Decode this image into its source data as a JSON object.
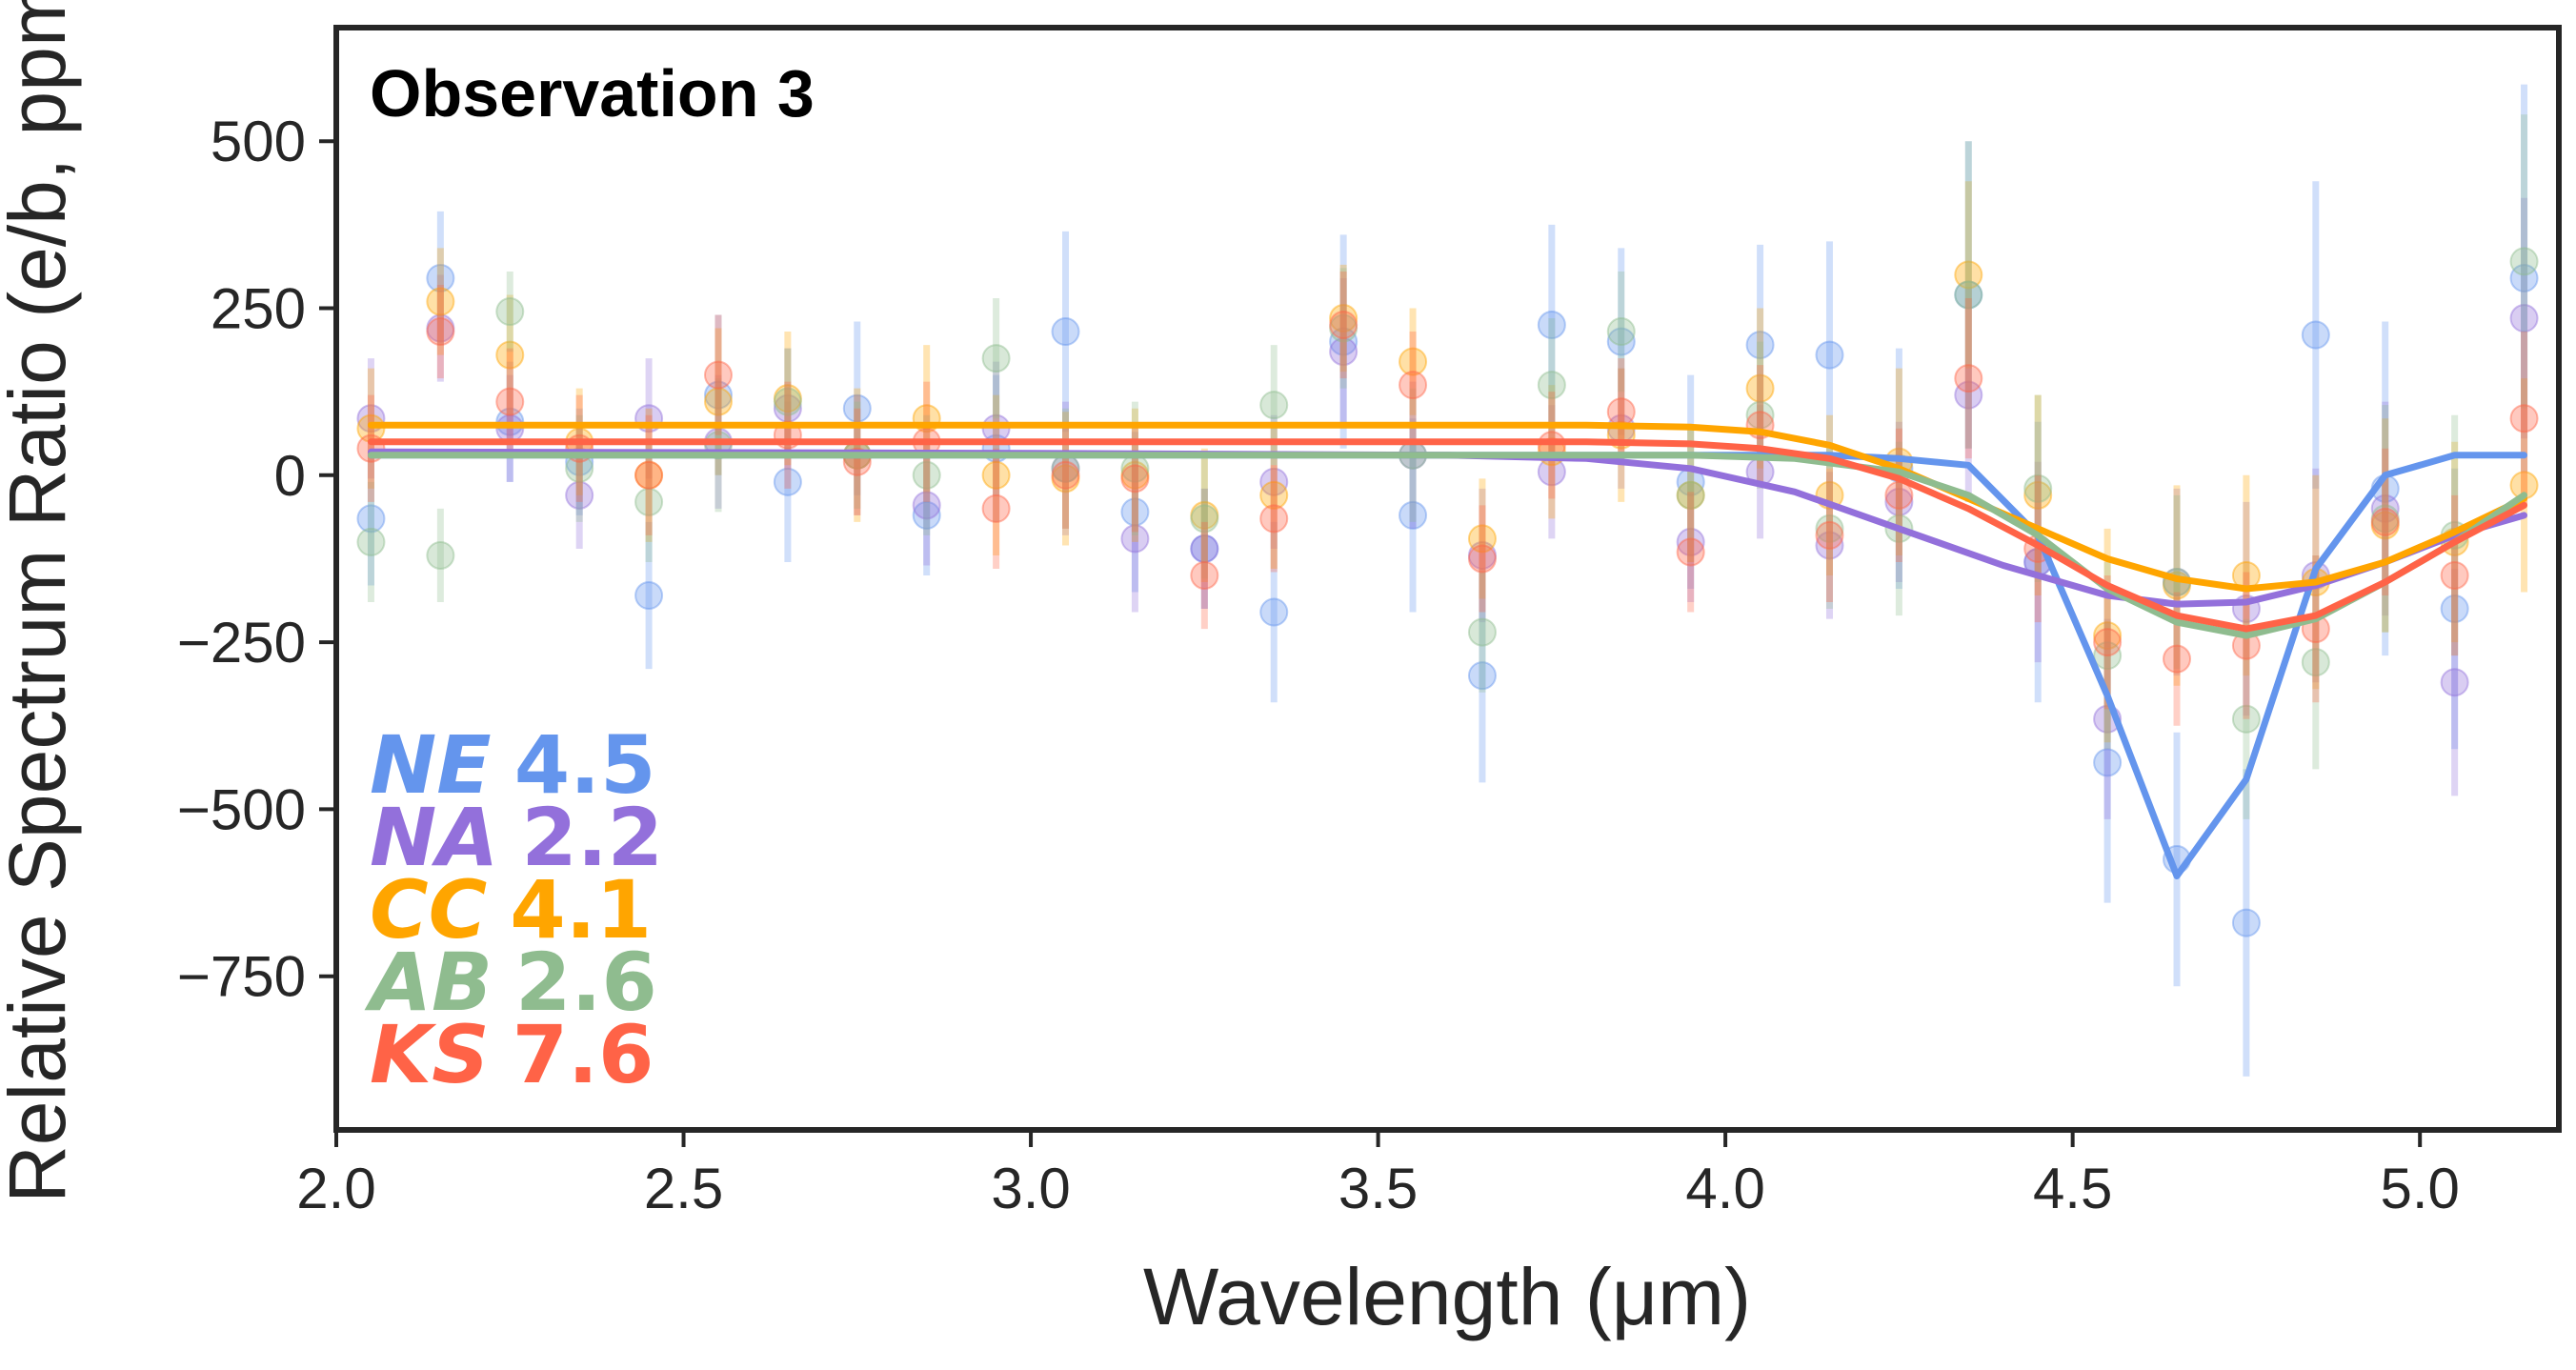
{
  "chart_data": {
    "type": "scatter",
    "title": "Observation 3",
    "xlabel": "Wavelength (μm)",
    "ylabel": "Relative Spectrum Ratio (e/b, ppm)",
    "xlim": [
      2.0,
      5.2
    ],
    "ylim": [
      -980,
      670
    ],
    "xticks": [
      2.0,
      2.5,
      3.0,
      3.5,
      4.0,
      4.5,
      5.0
    ],
    "xtick_labels": [
      "2.0",
      "2.5",
      "3.0",
      "3.5",
      "4.0",
      "4.5",
      "5.0"
    ],
    "yticks": [
      500,
      250,
      0,
      -250,
      -500,
      -750
    ],
    "ytick_labels": [
      "500",
      "250",
      "0",
      "−250",
      "−500",
      "−750"
    ],
    "grid": false,
    "legend_position": "bottom-left",
    "x": [
      2.05,
      2.15,
      2.25,
      2.35,
      2.45,
      2.55,
      2.65,
      2.75,
      2.85,
      2.95,
      3.05,
      3.15,
      3.25,
      3.35,
      3.45,
      3.55,
      3.65,
      3.75,
      3.85,
      3.95,
      4.05,
      4.15,
      4.25,
      4.35,
      4.45,
      4.55,
      4.65,
      4.75,
      4.85,
      4.95,
      5.05,
      5.15
    ],
    "series": [
      {
        "name": "NE",
        "score": "4.5",
        "italic_label": "NE",
        "score_label": "4.5",
        "color": "#6495ED",
        "values": [
          -65,
          295,
          80,
          20,
          -180,
          120,
          -10,
          100,
          -60,
          40,
          215,
          -55,
          -110,
          -205,
          200,
          -60,
          -300,
          225,
          200,
          -10,
          195,
          180,
          10,
          270,
          -130,
          -430,
          -575,
          -670,
          210,
          -20,
          -200,
          295
        ],
        "errors": [
          100,
          100,
          90,
          80,
          110,
          120,
          120,
          130,
          90,
          110,
          150,
          120,
          90,
          135,
          160,
          145,
          160,
          150,
          140,
          160,
          150,
          170,
          180,
          230,
          210,
          210,
          190,
          230,
          230,
          250,
          210,
          290
        ],
        "model_x": [
          2.05,
          2.5,
          3.0,
          3.5,
          3.8,
          4.0,
          4.15,
          4.25,
          4.35,
          4.45,
          4.55,
          4.65,
          4.75,
          4.85,
          4.95,
          5.05,
          5.15
        ],
        "model_y": [
          30,
          30,
          30,
          30,
          30,
          30,
          30,
          25,
          15,
          -90,
          -330,
          -600,
          -455,
          -140,
          0,
          30,
          30
        ]
      },
      {
        "name": "NA",
        "score": "2.2",
        "italic_label": "NA",
        "score_label": "2.2",
        "color": "#9370DB",
        "values": [
          85,
          220,
          70,
          -30,
          85,
          50,
          100,
          30,
          -45,
          70,
          10,
          -95,
          -110,
          -10,
          185,
          30,
          -120,
          5,
          70,
          -100,
          5,
          -105,
          -40,
          120,
          -130,
          -365,
          -160,
          -200,
          -150,
          -50,
          -310,
          235
        ],
        "errors": [
          90,
          80,
          80,
          80,
          90,
          100,
          90,
          90,
          90,
          100,
          100,
          110,
          90,
          100,
          110,
          110,
          100,
          100,
          90,
          90,
          100,
          110,
          120,
          160,
          150,
          150,
          140,
          160,
          160,
          160,
          170,
          180
        ],
        "model_x": [
          2.05,
          3.0,
          3.6,
          3.8,
          3.95,
          4.1,
          4.25,
          4.4,
          4.55,
          4.65,
          4.75,
          4.85,
          4.95,
          5.05,
          5.15
        ],
        "model_y": [
          35,
          33,
          30,
          25,
          10,
          -25,
          -80,
          -135,
          -180,
          -193,
          -190,
          -165,
          -130,
          -90,
          -60
        ]
      },
      {
        "name": "CC",
        "score": "4.1",
        "italic_label": "CC",
        "score_label": "4.1",
        "color": "#FFA500",
        "values": [
          70,
          260,
          180,
          50,
          0,
          110,
          115,
          30,
          85,
          0,
          -5,
          0,
          -60,
          -30,
          235,
          170,
          -95,
          35,
          60,
          -30,
          130,
          -30,
          20,
          300,
          -30,
          -240,
          -165,
          -150,
          -160,
          -75,
          -100,
          -15
        ],
        "errors": [
          90,
          80,
          90,
          80,
          100,
          110,
          100,
          100,
          110,
          120,
          100,
          100,
          100,
          110,
          80,
          80,
          90,
          100,
          100,
          100,
          120,
          120,
          140,
          140,
          150,
          160,
          150,
          150,
          160,
          160,
          150,
          160
        ],
        "model_x": [
          2.05,
          3.0,
          3.6,
          3.8,
          3.95,
          4.05,
          4.15,
          4.25,
          4.35,
          4.45,
          4.55,
          4.65,
          4.75,
          4.85,
          4.95,
          5.05,
          5.15
        ],
        "model_y": [
          75,
          75,
          75,
          75,
          72,
          65,
          45,
          10,
          -35,
          -80,
          -125,
          -155,
          -170,
          -160,
          -130,
          -85,
          -35
        ]
      },
      {
        "name": "AB",
        "score": "2.6",
        "italic_label": "AB",
        "score_label": "2.6",
        "color": "#8FBC8F",
        "values": [
          -100,
          -120,
          245,
          10,
          -40,
          45,
          110,
          30,
          0,
          175,
          10,
          10,
          -65,
          105,
          220,
          30,
          -235,
          135,
          215,
          -30,
          90,
          -80,
          -80,
          270,
          -20,
          -270,
          -160,
          -365,
          -280,
          -65,
          -90,
          320
        ],
        "errors": [
          90,
          70,
          60,
          80,
          90,
          100,
          80,
          80,
          90,
          90,
          90,
          100,
          90,
          90,
          90,
          100,
          90,
          100,
          90,
          100,
          110,
          120,
          130,
          230,
          140,
          140,
          130,
          150,
          160,
          170,
          180,
          220
        ],
        "model_x": [
          2.05,
          3.0,
          3.6,
          3.8,
          3.95,
          4.1,
          4.25,
          4.35,
          4.45,
          4.55,
          4.65,
          4.75,
          4.85,
          4.95,
          5.05,
          5.15
        ],
        "model_y": [
          30,
          30,
          30,
          30,
          30,
          25,
          5,
          -30,
          -90,
          -170,
          -220,
          -240,
          -215,
          -160,
          -100,
          -30
        ]
      },
      {
        "name": "KS",
        "score": "7.6",
        "italic_label": "KS",
        "score_label": "7.6",
        "color": "#FF6347",
        "values": [
          40,
          215,
          110,
          40,
          0,
          150,
          60,
          20,
          50,
          -50,
          0,
          -5,
          -150,
          -65,
          225,
          135,
          -125,
          45,
          95,
          -115,
          75,
          -90,
          -30,
          145,
          -110,
          -250,
          -275,
          -255,
          -230,
          -70,
          -150,
          85
        ],
        "errors": [
          80,
          70,
          80,
          80,
          90,
          90,
          80,
          80,
          90,
          90,
          80,
          80,
          80,
          80,
          80,
          80,
          80,
          80,
          80,
          90,
          90,
          100,
          100,
          120,
          110,
          100,
          100,
          110,
          110,
          110,
          120,
          130
        ],
        "model_x": [
          2.05,
          3.0,
          3.6,
          3.8,
          3.95,
          4.05,
          4.15,
          4.25,
          4.35,
          4.45,
          4.55,
          4.65,
          4.75,
          4.85,
          4.95,
          5.05,
          5.15
        ],
        "model_y": [
          50,
          50,
          50,
          50,
          47,
          40,
          25,
          -5,
          -50,
          -105,
          -165,
          -210,
          -230,
          -210,
          -160,
          -100,
          -45
        ]
      }
    ]
  }
}
